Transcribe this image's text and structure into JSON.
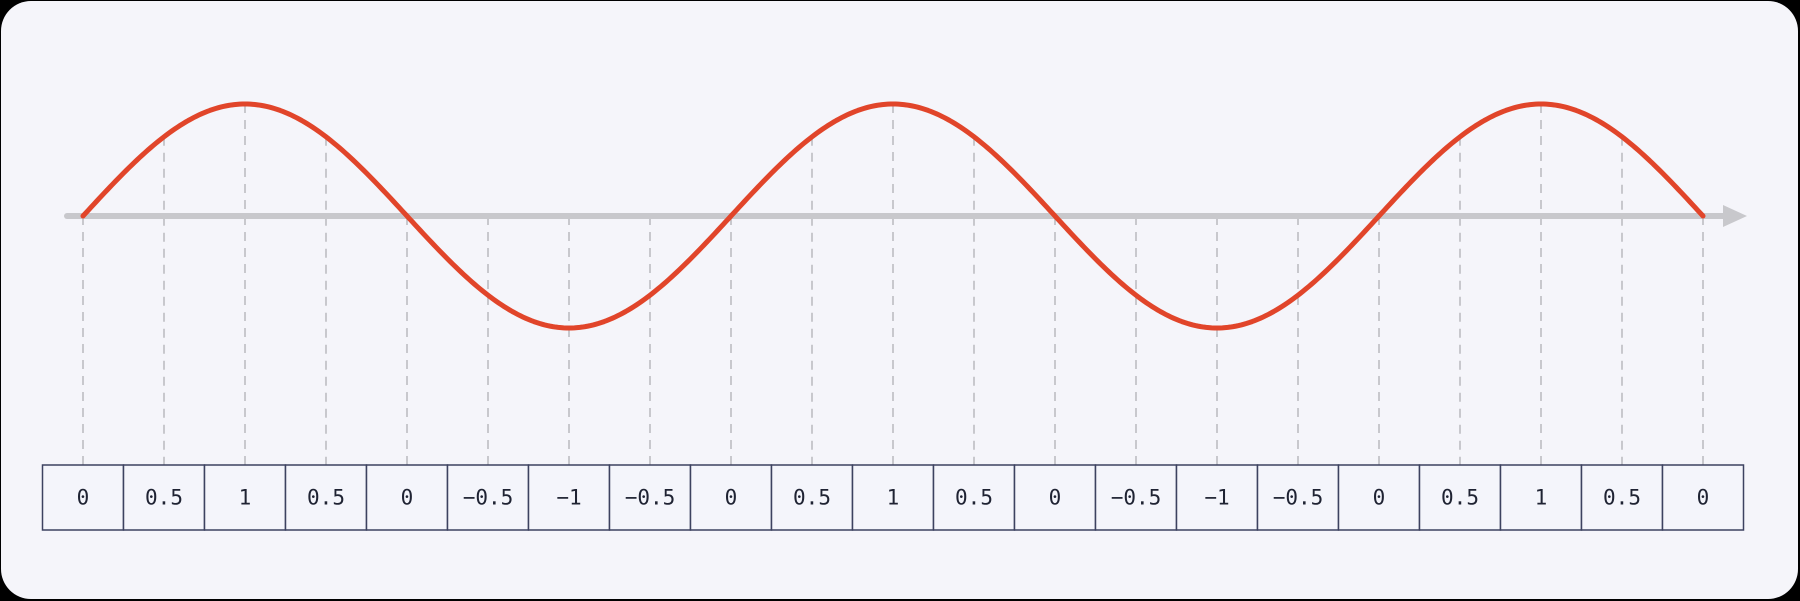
{
  "diagram": {
    "description_free": true,
    "samples": [
      "0",
      "0.5",
      "1",
      "0.5",
      "0",
      "−0.5",
      "−1",
      "−0.5",
      "0",
      "0.5",
      "1",
      "0.5",
      "0",
      "−0.5",
      "−1",
      "−0.5",
      "0",
      "0.5",
      "1",
      "0.5",
      "0"
    ],
    "cycles": 2.5,
    "colors": {
      "wave": "#e1452a",
      "axis": "#c8c8cc",
      "guide": "#bdbdc2",
      "cell_fill": "#f4f5fb",
      "cell_border": "#3d4260",
      "text": "#1f2333",
      "background": "#f5f5fa"
    }
  }
}
